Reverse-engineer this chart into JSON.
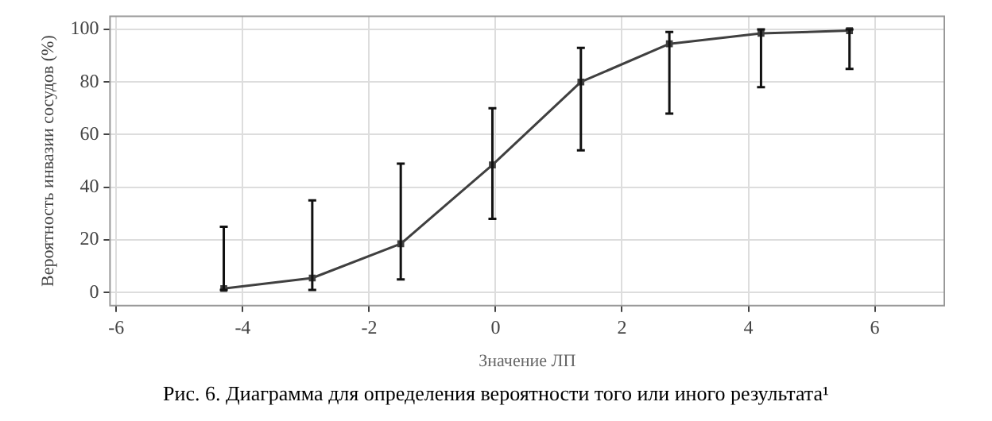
{
  "chart_data": {
    "type": "line",
    "xlabel": "Значение ЛП",
    "ylabel": "Вероятность инвазии сосудов (%)",
    "x": [
      -4.3,
      -2.9,
      -1.5,
      -0.05,
      1.35,
      2.75,
      4.2,
      5.6
    ],
    "series": [
      {
        "color": "#404040",
        "values": [
          1.5,
          5.5,
          18.5,
          48.5,
          80,
          94.5,
          98.5,
          99.5
        ],
        "errors": [
          [
            1,
            25
          ],
          [
            1,
            35
          ],
          [
            5,
            49
          ],
          [
            28,
            70
          ],
          [
            54,
            93
          ],
          [
            68,
            99
          ],
          [
            78,
            100
          ],
          [
            85,
            100
          ]
        ]
      }
    ],
    "xlim": [
      -6.1,
      7.1
    ],
    "xticks": [
      -6,
      -4,
      -2,
      0,
      2,
      4,
      6
    ],
    "ylim": [
      -5,
      105
    ],
    "yticks": [
      0,
      20,
      40,
      60,
      80,
      100
    ],
    "grid": true,
    "legend": false,
    "marker": "square",
    "line_style": "solid",
    "annotations": [
      "Рис. 6. Диаграмма для определения вероятности того или иного результата¹"
    ]
  }
}
